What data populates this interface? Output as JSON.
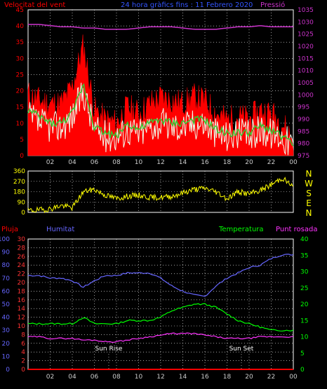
{
  "header": {
    "wind_title": "Velocitat del vent",
    "main_title": "24 hora gràfics fins : 11 Febrero 2020",
    "pressure_title": "Pressió"
  },
  "bottom_header": {
    "rain": "Pluja",
    "humidity": "Humitat",
    "temperature": "Temperatura",
    "dewpoint": "Punt rosada"
  },
  "colors": {
    "wind": "#ff0000",
    "gust": "#ffffff",
    "avg": "#33cc33",
    "direction": "#ffff00",
    "pressure": "#cc33cc",
    "humidity": "#6666ff",
    "temperature": "#00ff00",
    "dewpoint": "#ff33ff",
    "rain": "#ff0000",
    "grid": "#ffffff"
  },
  "x_ticks": [
    "02",
    "04",
    "06",
    "08",
    "10",
    "12",
    "14",
    "16",
    "18",
    "20",
    "22",
    "00"
  ],
  "wind_axis": {
    "ticks": [
      "0",
      "5",
      "10",
      "15",
      "20",
      "25",
      "30",
      "35",
      "40",
      "45"
    ],
    "ylim": [
      0,
      45
    ]
  },
  "pressure_axis": {
    "ticks": [
      "975",
      "980",
      "985",
      "990",
      "995",
      "1000",
      "1005",
      "1010",
      "1015",
      "1020",
      "1025",
      "1030",
      "1035"
    ],
    "ylim": [
      975,
      1035
    ]
  },
  "direction_axis": {
    "ticks": [
      "0",
      "90",
      "180",
      "270",
      "360"
    ],
    "ylim": [
      0,
      360
    ],
    "compass": [
      "N",
      "W",
      "S",
      "E",
      "N"
    ]
  },
  "rain_axis": {
    "ticks": [
      "0",
      "10",
      "20",
      "30",
      "40",
      "50",
      "60",
      "70",
      "80",
      "90",
      "100"
    ],
    "ylim": [
      0,
      100
    ]
  },
  "humidity_axis": {
    "ticks": [
      "0",
      "2",
      "4",
      "6",
      "8",
      "10",
      "12",
      "14",
      "16",
      "18",
      "20",
      "22",
      "24",
      "26",
      "28",
      "30"
    ],
    "ylim": [
      0,
      30
    ]
  },
  "temp_axis": {
    "ticks": [
      "0",
      "5",
      "10",
      "15",
      "20",
      "25",
      "30",
      "35",
      "40"
    ],
    "ylim": [
      0,
      40
    ]
  },
  "sun": {
    "rise_label": "Sun Rise",
    "set_label": "Sun Set",
    "rise_hour": 7.3,
    "set_hour": 19.3
  },
  "chart_data": [
    {
      "type": "line",
      "name": "wind",
      "x": [
        0,
        1,
        2,
        3,
        4,
        5,
        6,
        7,
        8,
        9,
        10,
        11,
        12,
        13,
        14,
        15,
        16,
        17,
        18,
        19,
        20,
        21,
        22,
        23,
        24
      ],
      "series": [
        {
          "name": "wind speed",
          "values": [
            19,
            17,
            16,
            16,
            21,
            34,
            14,
            11,
            10,
            15,
            13,
            16,
            18,
            17,
            16,
            18,
            17,
            13,
            11,
            12,
            11,
            14,
            13,
            10,
            5
          ]
        },
        {
          "name": "gust",
          "values": [
            12,
            10,
            9,
            9,
            12,
            20,
            8,
            6,
            6,
            8,
            7,
            9,
            10,
            9,
            9,
            10,
            10,
            7,
            6,
            7,
            6,
            8,
            7,
            6,
            3
          ]
        },
        {
          "name": "average",
          "values": [
            14,
            12,
            10,
            10,
            13,
            22,
            9,
            7,
            6,
            10,
            8,
            10,
            11,
            10,
            10,
            11,
            11,
            8,
            7,
            7,
            7,
            9,
            8,
            6,
            3
          ]
        },
        {
          "name": "pressure",
          "values": [
            1029,
            1029,
            1028.5,
            1028,
            1028,
            1027.5,
            1027.5,
            1027,
            1027,
            1027,
            1027.5,
            1028,
            1028,
            1028,
            1027.5,
            1027,
            1027,
            1027,
            1027.5,
            1028,
            1028,
            1028.5,
            1028,
            1028,
            1028
          ]
        }
      ],
      "ylim": [
        0,
        45
      ]
    },
    {
      "type": "line",
      "name": "wind direction",
      "x": [
        0,
        1,
        2,
        3,
        4,
        5,
        6,
        7,
        8,
        9,
        10,
        11,
        12,
        13,
        14,
        15,
        16,
        17,
        18,
        19,
        20,
        21,
        22,
        23,
        24
      ],
      "series": [
        {
          "name": "direction",
          "values": [
            15,
            20,
            30,
            60,
            40,
            180,
            200,
            150,
            120,
            140,
            150,
            130,
            130,
            140,
            170,
            200,
            210,
            180,
            120,
            180,
            160,
            190,
            240,
            300,
            220
          ]
        }
      ],
      "ylim": [
        0,
        360
      ]
    },
    {
      "type": "line",
      "name": "temperature humidity",
      "x": [
        0,
        1,
        2,
        3,
        4,
        5,
        6,
        7,
        8,
        9,
        10,
        11,
        12,
        13,
        14,
        15,
        16,
        17,
        18,
        19,
        20,
        21,
        22,
        23,
        24
      ],
      "series": [
        {
          "name": "humidity",
          "values": [
            72,
            72,
            70,
            70,
            68,
            63,
            68,
            72,
            72,
            74,
            74,
            74,
            70,
            64,
            60,
            57,
            56,
            64,
            70,
            74,
            78,
            80,
            85,
            88,
            88
          ]
        },
        {
          "name": "temperature",
          "values": [
            14,
            14,
            14,
            14,
            14,
            16,
            14,
            14,
            14,
            15,
            15,
            15,
            16,
            18,
            19,
            20,
            20,
            19,
            17,
            15,
            14,
            13,
            12,
            12,
            12
          ]
        },
        {
          "name": "dewpoint",
          "values": [
            10,
            10,
            9.5,
            9.5,
            9.5,
            9,
            9,
            8.5,
            8.5,
            9,
            9.5,
            10,
            10.5,
            11,
            11,
            11,
            10.5,
            10,
            9.5,
            9.5,
            9.5,
            10,
            10,
            10,
            10
          ]
        },
        {
          "name": "rain",
          "values": [
            0,
            0,
            0,
            0,
            0,
            0,
            0,
            0,
            0,
            0,
            0,
            0,
            0,
            0,
            0,
            0,
            0,
            0,
            0,
            0,
            0,
            0,
            0,
            0,
            0
          ]
        }
      ]
    }
  ]
}
